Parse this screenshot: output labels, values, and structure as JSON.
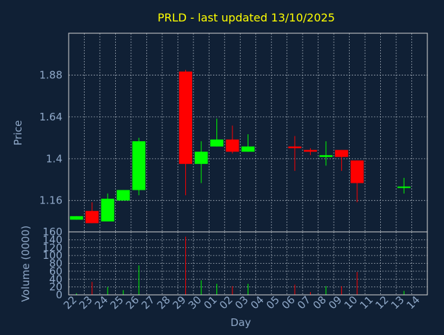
{
  "title": "PRLD - last updated 13/10/2025",
  "colors": {
    "background": "#102035",
    "frame": "#d8d8d8",
    "grid": "#9aa5b1",
    "title": "#ffff00",
    "axis_text": "#8fa8c8",
    "up": "#00ff00",
    "down": "#ff0000"
  },
  "chart_data": [
    {
      "type": "candlestick",
      "ylabel": "Price",
      "yticks": [
        1.16,
        1.4,
        1.64,
        1.88
      ],
      "ytick_labels": [
        "1.16",
        "1.4",
        "1.64",
        "1.88"
      ],
      "ylim": [
        0.98,
        2.12
      ],
      "grid": true,
      "x": [
        "22",
        "23",
        "24",
        "25",
        "26",
        "27",
        "28",
        "29",
        "30",
        "01",
        "02",
        "03",
        "04",
        "05",
        "06",
        "07",
        "08",
        "09",
        "10",
        "11",
        "12",
        "13",
        "14"
      ],
      "candles": [
        {
          "x": "22",
          "open": 1.05,
          "high": 1.07,
          "low": 1.05,
          "close": 1.07
        },
        {
          "x": "23",
          "open": 1.1,
          "high": 1.15,
          "low": 1.03,
          "close": 1.03
        },
        {
          "x": "24",
          "open": 1.04,
          "high": 1.2,
          "low": 1.04,
          "close": 1.17
        },
        {
          "x": "25",
          "open": 1.16,
          "high": 1.22,
          "low": 1.16,
          "close": 1.22
        },
        {
          "x": "26",
          "open": 1.22,
          "high": 1.52,
          "low": 1.19,
          "close": 1.5
        },
        {
          "x": "29",
          "open": 1.9,
          "high": 1.91,
          "low": 1.19,
          "close": 1.37
        },
        {
          "x": "30",
          "open": 1.37,
          "high": 1.5,
          "low": 1.26,
          "close": 1.44
        },
        {
          "x": "01",
          "open": 1.47,
          "high": 1.63,
          "low": 1.47,
          "close": 1.51
        },
        {
          "x": "02",
          "open": 1.51,
          "high": 1.59,
          "low": 1.43,
          "close": 1.44
        },
        {
          "x": "03",
          "open": 1.44,
          "high": 1.54,
          "low": 1.44,
          "close": 1.47
        },
        {
          "x": "06",
          "open": 1.47,
          "high": 1.53,
          "low": 1.33,
          "close": 1.46
        },
        {
          "x": "07",
          "open": 1.45,
          "high": 1.46,
          "low": 1.42,
          "close": 1.44
        },
        {
          "x": "08",
          "open": 1.41,
          "high": 1.5,
          "low": 1.36,
          "close": 1.42
        },
        {
          "x": "09",
          "open": 1.45,
          "high": 1.45,
          "low": 1.33,
          "close": 1.41
        },
        {
          "x": "10",
          "open": 1.39,
          "high": 1.39,
          "low": 1.15,
          "close": 1.26
        },
        {
          "x": "13",
          "open": 1.24,
          "high": 1.29,
          "low": 1.2,
          "close": 1.24
        }
      ]
    },
    {
      "type": "bar",
      "ylabel": "Volume (0000)",
      "xlabel": "Day",
      "yticks": [
        0,
        20,
        40,
        60,
        80,
        100,
        120,
        140,
        160
      ],
      "ytick_labels": [
        "0",
        "20",
        "40",
        "60",
        "80",
        "100",
        "120",
        "140",
        "160"
      ],
      "ylim": [
        0,
        160
      ],
      "grid": true,
      "categories": [
        "22",
        "23",
        "24",
        "25",
        "26",
        "27",
        "28",
        "29",
        "30",
        "01",
        "02",
        "03",
        "04",
        "05",
        "06",
        "07",
        "08",
        "09",
        "10",
        "11",
        "12",
        "13",
        "14"
      ],
      "bars": [
        {
          "x": "22",
          "value": 4,
          "direction": "up"
        },
        {
          "x": "23",
          "value": 33,
          "direction": "down"
        },
        {
          "x": "24",
          "value": 20,
          "direction": "up"
        },
        {
          "x": "25",
          "value": 12,
          "direction": "up"
        },
        {
          "x": "26",
          "value": 75,
          "direction": "up"
        },
        {
          "x": "29",
          "value": 148,
          "direction": "down"
        },
        {
          "x": "30",
          "value": 37,
          "direction": "up"
        },
        {
          "x": "01",
          "value": 28,
          "direction": "up"
        },
        {
          "x": "02",
          "value": 22,
          "direction": "down"
        },
        {
          "x": "03",
          "value": 28,
          "direction": "up"
        },
        {
          "x": "06",
          "value": 26,
          "direction": "down"
        },
        {
          "x": "07",
          "value": 7,
          "direction": "down"
        },
        {
          "x": "08",
          "value": 22,
          "direction": "up"
        },
        {
          "x": "09",
          "value": 22,
          "direction": "down"
        },
        {
          "x": "10",
          "value": 58,
          "direction": "down"
        },
        {
          "x": "13",
          "value": 10,
          "direction": "up"
        }
      ]
    }
  ]
}
